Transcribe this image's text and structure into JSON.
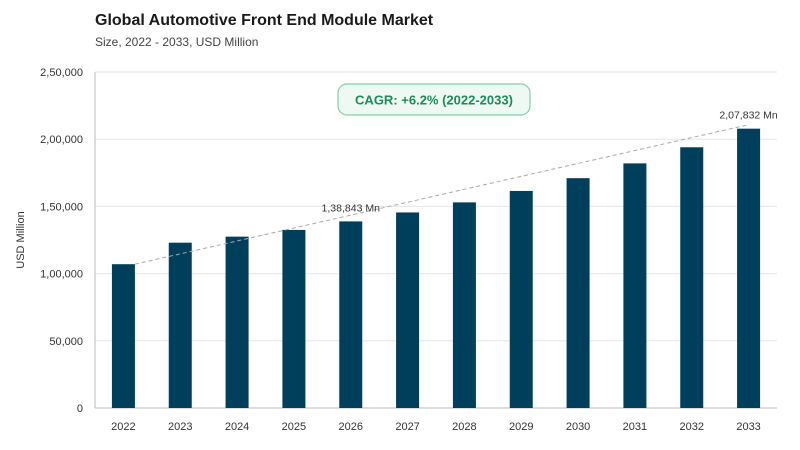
{
  "title": "Global Automotive Front End Module Market",
  "subtitle": "Size, 2022 - 2033, USD Million",
  "colors": {
    "bar": "#003f5c",
    "grid": "#e6e6e6",
    "axis": "#bbbbbb",
    "trend": "#a8a8a8",
    "cagr_border": "#7fd1ab",
    "cagr_fill": "#eef9f3",
    "cagr_text": "#1e8a5a"
  },
  "chart_data": {
    "type": "bar",
    "categories": [
      "2022",
      "2023",
      "2024",
      "2025",
      "2026",
      "2027",
      "2028",
      "2029",
      "2030",
      "2031",
      "2032",
      "2033"
    ],
    "values": [
      107000,
      123000,
      127500,
      132500,
      138843,
      145500,
      153000,
      161500,
      171000,
      182000,
      194000,
      207832
    ],
    "ylabel": "USD Million",
    "ylim": [
      0,
      250000
    ],
    "yticks": [
      {
        "value": 0,
        "label": "0"
      },
      {
        "value": 50000,
        "label": "50,000"
      },
      {
        "value": 100000,
        "label": "1,00,000"
      },
      {
        "value": 150000,
        "label": "1,50,000"
      },
      {
        "value": 200000,
        "label": "2,00,000"
      },
      {
        "value": 250000,
        "label": "2,50,000"
      }
    ],
    "grid": true,
    "trendline": true,
    "annotations": [
      {
        "category": "2026",
        "text": "1,38,843 Mn"
      },
      {
        "category": "2033",
        "text": "2,07,832 Mn"
      }
    ],
    "cagr": "CAGR: +6.2% (2022-2033)"
  }
}
